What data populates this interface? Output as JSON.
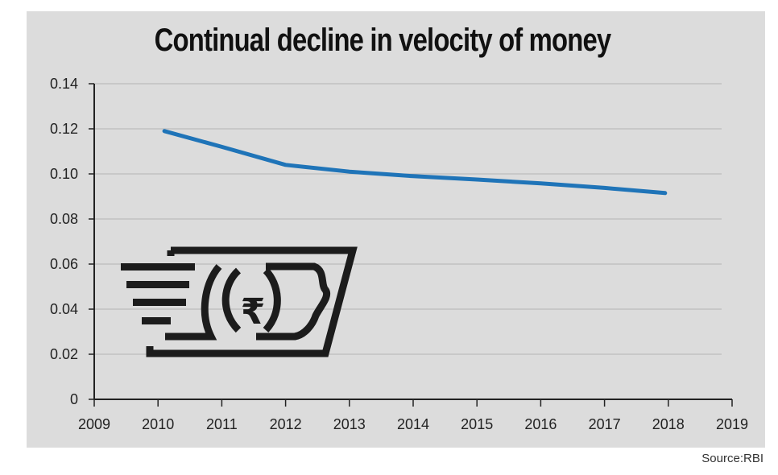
{
  "source": "Source:RBI",
  "colors": {
    "background": "#dcdcdc",
    "line": "#1f74b8",
    "grid": "#b5b5b5",
    "axis": "#222222",
    "icon": "#1c1c1c"
  },
  "icon": "rupee-banknote-icon",
  "chart_data": {
    "type": "line",
    "title": "Continual decline in velocity of money",
    "xlabel": "",
    "ylabel": "",
    "xlim": [
      2009,
      2019
    ],
    "ylim": [
      0,
      0.14
    ],
    "x_ticks": [
      "2009",
      "2010",
      "2011",
      "2012",
      "2013",
      "2014",
      "2015",
      "2016",
      "2017",
      "2018",
      "2019"
    ],
    "y_ticks": [
      "0",
      "0.02",
      "0.04",
      "0.06",
      "0.08",
      "0.10",
      "0.12",
      "0.14"
    ],
    "grid": true,
    "series": [
      {
        "x": [
          2010.1,
          2011,
          2012,
          2013,
          2014,
          2015,
          2016,
          2017,
          2017.95
        ],
        "y": [
          0.119,
          0.112,
          0.104,
          0.101,
          0.099,
          0.0975,
          0.0958,
          0.0938,
          0.0915
        ]
      }
    ]
  }
}
